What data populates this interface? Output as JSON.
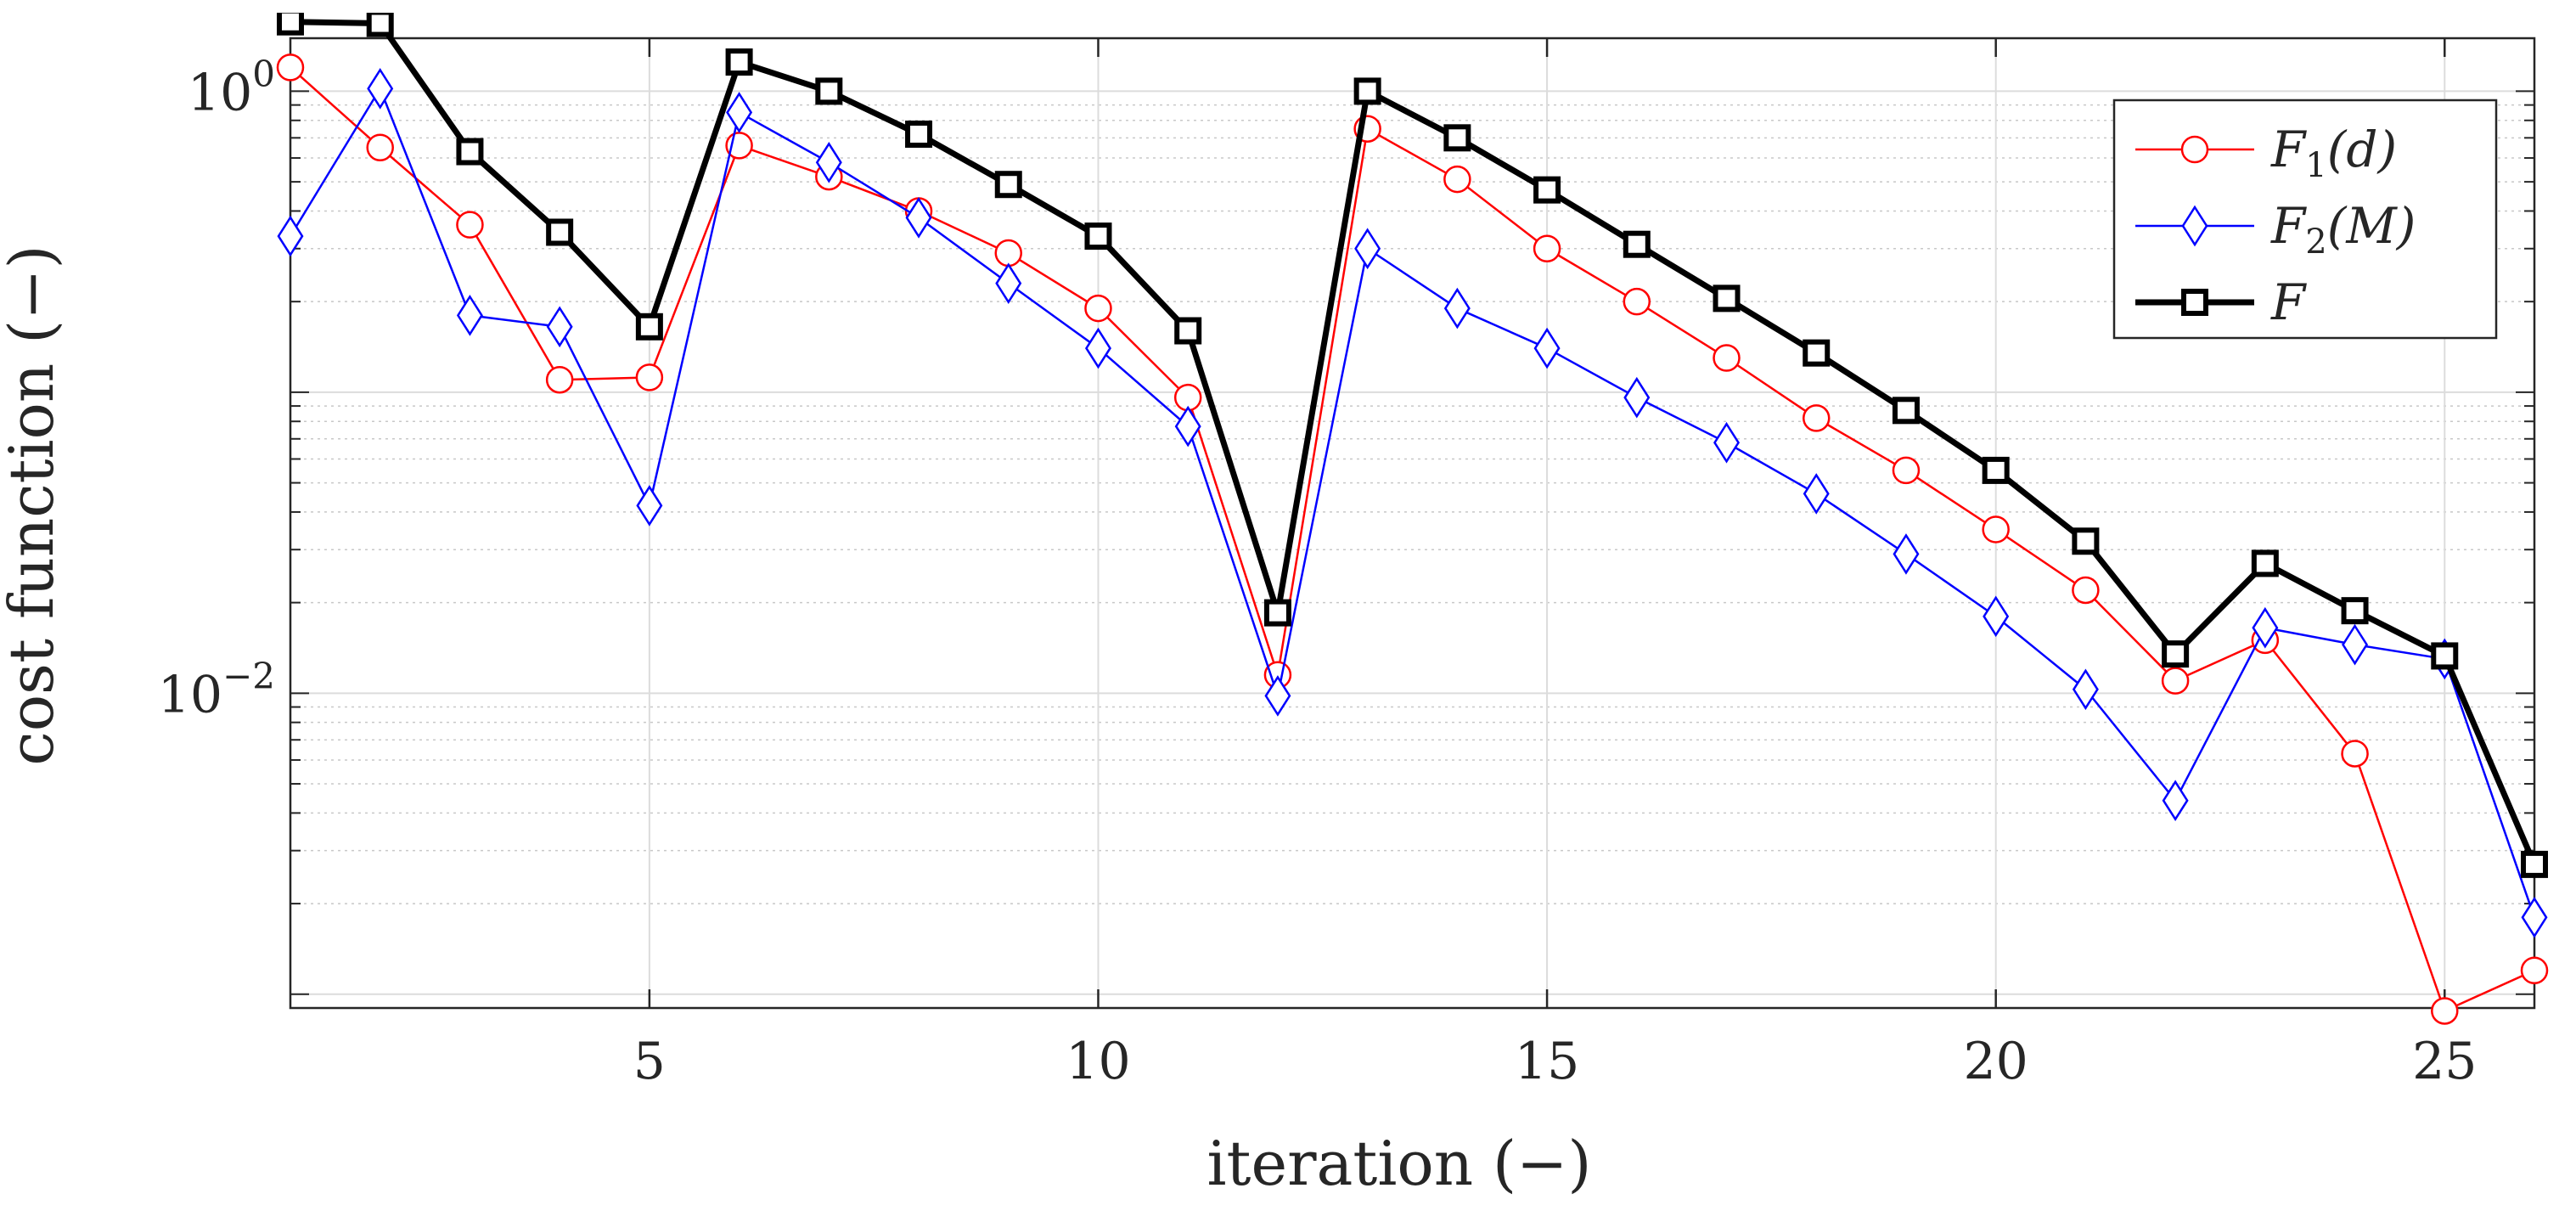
{
  "chart_data": {
    "type": "line",
    "yscale": "log",
    "title": "",
    "xlabel": "iteration (−)",
    "ylabel": "cost function (−)",
    "xlim": [
      1,
      26
    ],
    "ylim": [
      0.0009,
      1.5
    ],
    "grid": true,
    "minor_grid": true,
    "legend_position": "top-right",
    "x_ticks": [
      5,
      10,
      15,
      20,
      25
    ],
    "y_ticks": [
      {
        "value": 1,
        "base": "10",
        "exponent": "0"
      },
      {
        "value": 0.01,
        "base": "10",
        "exponent": "−2"
      }
    ],
    "x": [
      1,
      2,
      3,
      4,
      5,
      6,
      7,
      8,
      9,
      10,
      11,
      12,
      13,
      14,
      15,
      16,
      17,
      18,
      19,
      20,
      21,
      22,
      23,
      24,
      25,
      26
    ],
    "series": [
      {
        "name": "F1(d)",
        "legend_main": "F",
        "legend_sub": "1",
        "legend_arg": "(d)",
        "color": "#ff0000",
        "marker": "circle",
        "line_weight": "thin",
        "values": [
          1.2,
          0.65,
          0.36,
          0.11,
          0.112,
          0.66,
          0.52,
          0.4,
          0.29,
          0.19,
          0.096,
          0.0115,
          0.75,
          0.51,
          0.3,
          0.2,
          0.13,
          0.082,
          0.055,
          0.035,
          0.022,
          0.011,
          0.015,
          0.0063,
          0.00088,
          0.0012
        ]
      },
      {
        "name": "F2(M)",
        "legend_main": "F",
        "legend_sub": "2",
        "legend_arg": "(M)",
        "color": "#0000ff",
        "marker": "diamond",
        "line_weight": "thin",
        "values": [
          0.33,
          1.02,
          0.18,
          0.165,
          0.042,
          0.85,
          0.58,
          0.38,
          0.23,
          0.14,
          0.077,
          0.0098,
          0.3,
          0.19,
          0.14,
          0.096,
          0.068,
          0.046,
          0.029,
          0.018,
          0.0103,
          0.0044,
          0.0165,
          0.0145,
          0.013,
          0.0018
        ]
      },
      {
        "name": "F",
        "legend_main": "F",
        "legend_sub": "",
        "legend_arg": "",
        "color": "#000000",
        "marker": "square",
        "line_weight": "thick",
        "values": [
          1.7,
          1.68,
          0.63,
          0.34,
          0.165,
          1.25,
          1.0,
          0.72,
          0.49,
          0.33,
          0.16,
          0.0185,
          1.0,
          0.7,
          0.47,
          0.31,
          0.205,
          0.135,
          0.087,
          0.055,
          0.032,
          0.0135,
          0.027,
          0.0188,
          0.0133,
          0.0027
        ]
      }
    ]
  }
}
